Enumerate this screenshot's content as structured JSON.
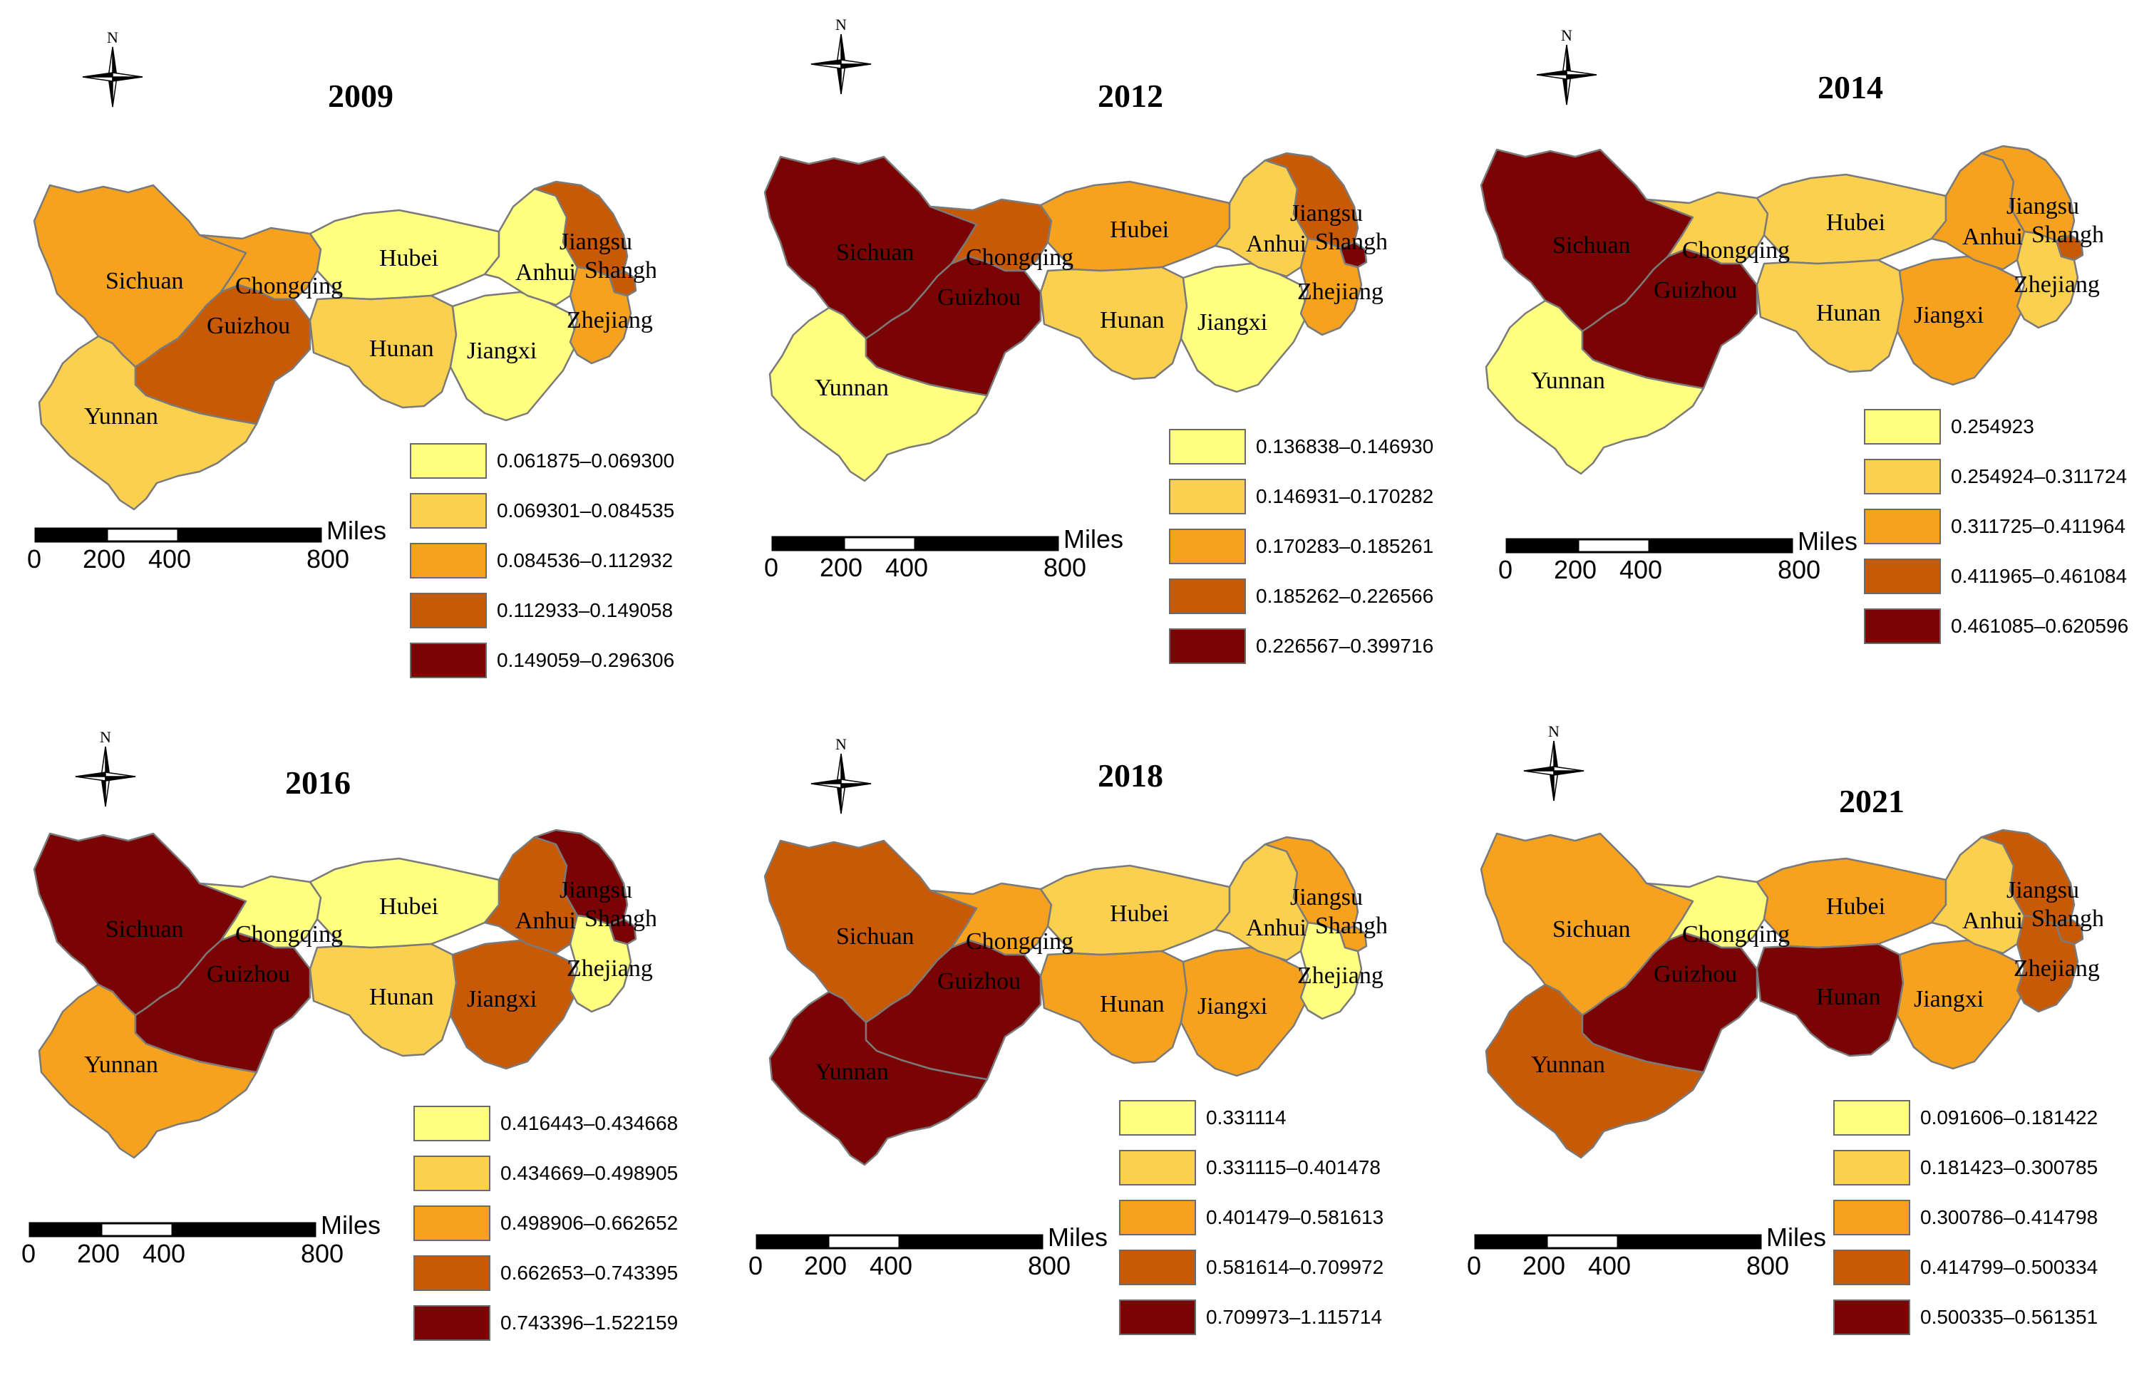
{
  "palette": [
    "#ffff80",
    "#fcd04f",
    "#f6a21e",
    "#c85a05",
    "#7a0303"
  ],
  "scale": {
    "unit": "Miles",
    "ticks": [
      "0",
      "200",
      "400",
      "800"
    ]
  },
  "compass_label": "N",
  "province_labels": {
    "sichuan": "Sichuan",
    "chongqing": "Chongqing",
    "yunnan": "Yunnan",
    "guizhou": "Guizhou",
    "hubei": "Hubei",
    "hunan": "Hunan",
    "jiangxi": "Jiangxi",
    "anhui": "Anhui",
    "jiangsu": "Jiangsu",
    "shanghai": "Shanghai",
    "zhejiang": "Zhejiang"
  },
  "panels": [
    {
      "year": "2009",
      "classes": {
        "sichuan": 2,
        "chongqing": 2,
        "yunnan": 1,
        "guizhou": 3,
        "hubei": 0,
        "hunan": 1,
        "jiangxi": 0,
        "anhui": 0,
        "jiangsu": 3,
        "shanghai": 3,
        "zhejiang": 2
      },
      "legend": [
        "0.061875–0.069300",
        "0.069301–0.084535",
        "0.084536–0.112932",
        "0.112933–0.149058",
        "0.149059–0.296306"
      ]
    },
    {
      "year": "2012",
      "classes": {
        "sichuan": 4,
        "chongqing": 3,
        "yunnan": 0,
        "guizhou": 4,
        "hubei": 2,
        "hunan": 1,
        "jiangxi": 0,
        "anhui": 1,
        "jiangsu": 3,
        "shanghai": 4,
        "zhejiang": 2
      },
      "legend": [
        "0.136838–0.146930",
        "0.146931–0.170282",
        "0.170283–0.185261",
        "0.185262–0.226566",
        "0.226567–0.399716"
      ]
    },
    {
      "year": "2014",
      "classes": {
        "sichuan": 4,
        "chongqing": 1,
        "yunnan": 0,
        "guizhou": 4,
        "hubei": 1,
        "hunan": 1,
        "jiangxi": 2,
        "anhui": 2,
        "jiangsu": 2,
        "shanghai": 3,
        "zhejiang": 1
      },
      "legend": [
        "0.254923",
        "0.254924–0.311724",
        "0.311725–0.411964",
        "0.411965–0.461084",
        "0.461085–0.620596"
      ]
    },
    {
      "year": "2016",
      "classes": {
        "sichuan": 4,
        "chongqing": 0,
        "yunnan": 2,
        "guizhou": 4,
        "hubei": 0,
        "hunan": 1,
        "jiangxi": 3,
        "anhui": 3,
        "jiangsu": 4,
        "shanghai": 4,
        "zhejiang": 0
      },
      "legend": [
        "0.416443–0.434668",
        "0.434669–0.498905",
        "0.498906–0.662652",
        "0.662653–0.743395",
        "0.743396–1.522159"
      ]
    },
    {
      "year": "2018",
      "classes": {
        "sichuan": 3,
        "chongqing": 2,
        "yunnan": 4,
        "guizhou": 4,
        "hubei": 1,
        "hunan": 2,
        "jiangxi": 2,
        "anhui": 1,
        "jiangsu": 2,
        "shanghai": 2,
        "zhejiang": 0
      },
      "legend": [
        "0.331114",
        "0.331115–0.401478",
        "0.401479–0.581613",
        "0.581614–0.709972",
        "0.709973–1.115714"
      ]
    },
    {
      "year": "2021",
      "classes": {
        "sichuan": 2,
        "chongqing": 0,
        "yunnan": 3,
        "guizhou": 4,
        "hubei": 2,
        "hunan": 4,
        "jiangxi": 2,
        "anhui": 1,
        "jiangsu": 3,
        "shanghai": 3,
        "zhejiang": 3
      },
      "legend": [
        "0.091606–0.181422",
        "0.181423–0.300785",
        "0.300786–0.414798",
        "0.414799–0.500334",
        "0.500335–0.561351"
      ]
    }
  ]
}
